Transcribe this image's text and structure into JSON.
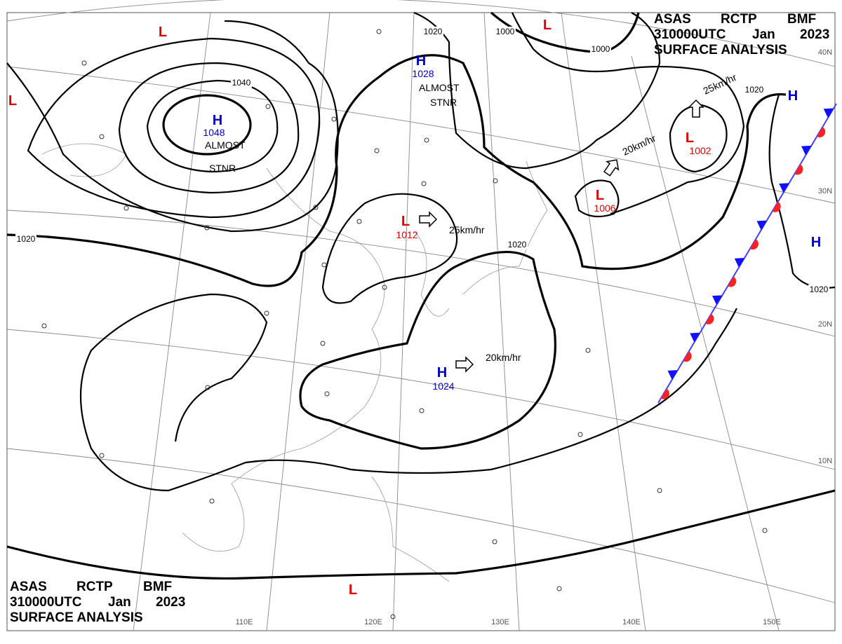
{
  "header": {
    "agency": "ASAS",
    "station": "RCTP",
    "code": "BMF",
    "time": "310000UTC",
    "month": "Jan",
    "year": "2023",
    "title": "SURFACE ANALYSIS"
  },
  "centers": [
    {
      "symbol": "H",
      "pressure": "1048",
      "status": [
        "ALMOST",
        "STNR"
      ]
    },
    {
      "symbol": "H",
      "pressure": "1028",
      "status": [
        "ALMOST",
        "STNR"
      ]
    },
    {
      "symbol": "L",
      "pressure": "1012",
      "motion": "25km/hr"
    },
    {
      "symbol": "H",
      "pressure": "1024",
      "motion": "20km/hr"
    },
    {
      "symbol": "L",
      "pressure": "1006",
      "motion": "20km/hr"
    },
    {
      "symbol": "L",
      "pressure": "1002",
      "motion": "25km/hr"
    },
    {
      "symbol": "L"
    },
    {
      "symbol": "L"
    },
    {
      "symbol": "L"
    },
    {
      "symbol": "L"
    },
    {
      "symbol": "H"
    },
    {
      "symbol": "H"
    }
  ],
  "isobar_labels": [
    "1040",
    "1020",
    "1000",
    "1000",
    "1020",
    "1020",
    "1020",
    "1020"
  ],
  "latitudes": [
    "40N",
    "30N",
    "20N",
    "10N"
  ],
  "longitudes": [
    "110E",
    "120E",
    "130E",
    "140E",
    "150E"
  ]
}
